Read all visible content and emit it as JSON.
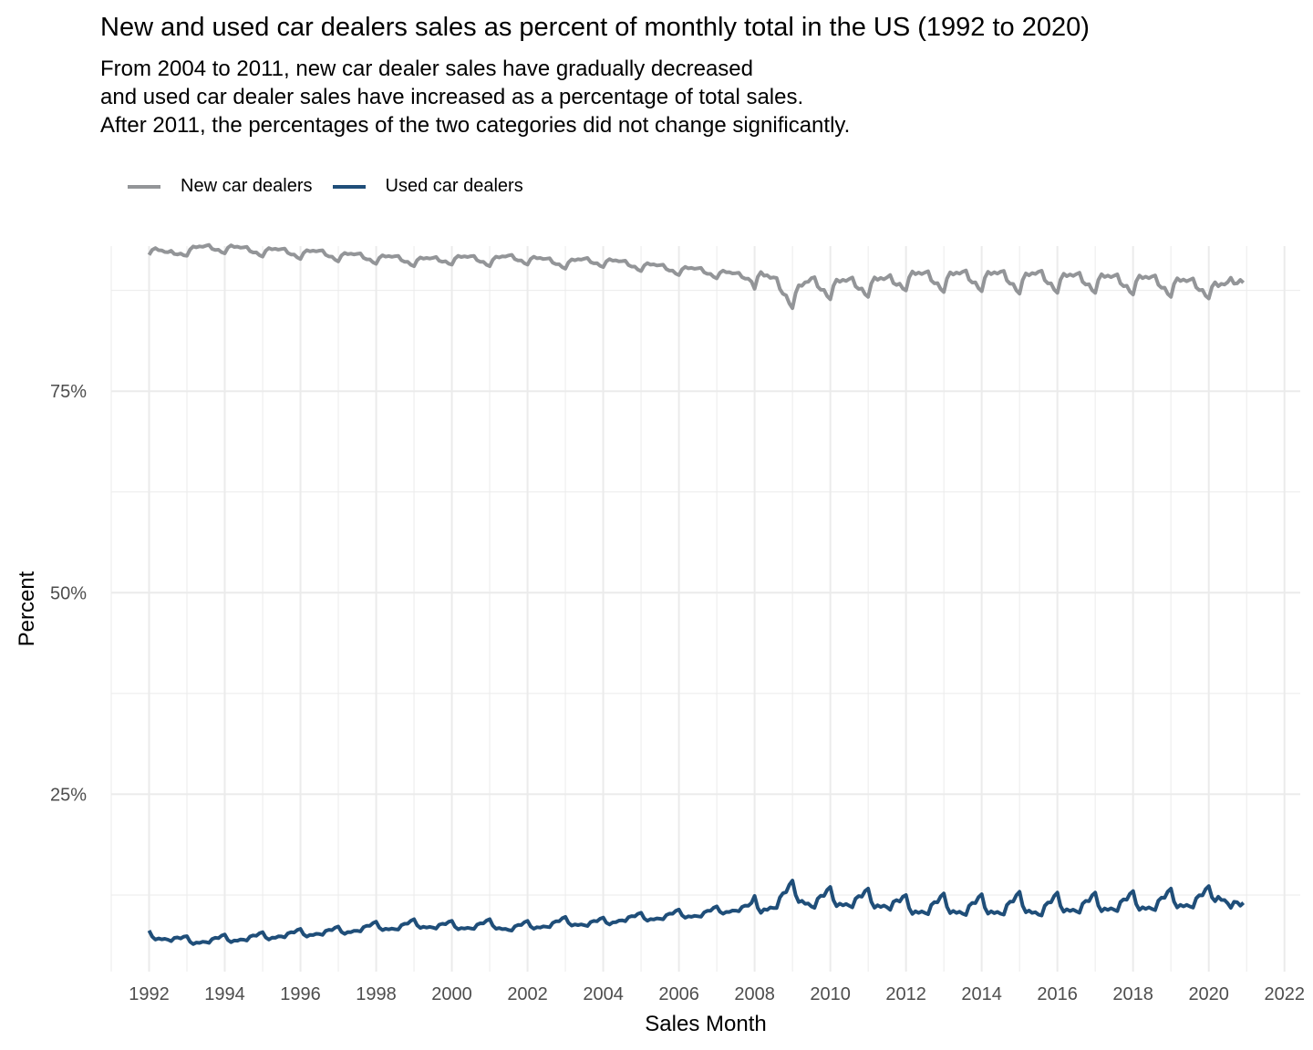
{
  "title": "New and used car dealers sales as percent of monthly total in the US (1992 to 2020)",
  "subtitle": [
    "From 2004 to 2011, new car dealer sales have gradually decreased",
    "and used car dealer sales have increased as a percentage of total sales.",
    "After 2011, the percentages of the two categories did not change significantly."
  ],
  "colors": {
    "new": "#939598",
    "used": "#1f4e79",
    "grid": "#ebebeb"
  },
  "chart_data": {
    "type": "line",
    "title": "New and used car dealers sales as percent of monthly total in the US (1992 to 2020)",
    "xlabel": "Sales Month",
    "ylabel": "Percent",
    "xlim": [
      "1991-01-01",
      "2022-06-01"
    ],
    "ylim": [
      3,
      93
    ],
    "x_ticks": [
      "1992",
      "1994",
      "1996",
      "1998",
      "2000",
      "2002",
      "2004",
      "2006",
      "2008",
      "2010",
      "2012",
      "2014",
      "2016",
      "2018",
      "2020",
      "2022"
    ],
    "y_ticks": [
      "25%",
      "50%",
      "75%"
    ],
    "y_tick_values": [
      25,
      50,
      75
    ],
    "legend_position": "top-left",
    "grid": true,
    "series": [
      {
        "name": "New car dealers",
        "color": "#939598",
        "x": [
          "1992-01-01",
          "1992-07-01",
          "1993-01-01",
          "1993-07-01",
          "1994-01-01",
          "1994-07-01",
          "1995-01-01",
          "1995-07-01",
          "1996-01-01",
          "1996-07-01",
          "1997-01-01",
          "1997-07-01",
          "1998-01-01",
          "1998-07-01",
          "1999-01-01",
          "1999-07-01",
          "2000-01-01",
          "2000-07-01",
          "2001-01-01",
          "2001-07-01",
          "2002-01-01",
          "2002-07-01",
          "2003-01-01",
          "2003-07-01",
          "2004-01-01",
          "2004-07-01",
          "2005-01-01",
          "2005-07-01",
          "2006-01-01",
          "2006-07-01",
          "2007-01-01",
          "2007-07-01",
          "2008-01-01",
          "2008-07-01",
          "2009-01-01",
          "2009-07-01",
          "2010-01-01",
          "2010-07-01",
          "2011-01-01",
          "2011-07-01",
          "2012-01-01",
          "2012-07-01",
          "2013-01-01",
          "2013-07-01",
          "2014-01-01",
          "2014-07-01",
          "2015-01-01",
          "2015-07-01",
          "2016-01-01",
          "2016-07-01",
          "2017-01-01",
          "2017-07-01",
          "2018-01-01",
          "2018-07-01",
          "2019-01-01",
          "2019-07-01",
          "2020-01-01",
          "2020-04-01",
          "2020-07-01",
          "2020-12-01"
        ],
        "values": [
          92.5,
          92.0,
          92.4,
          92.8,
          92.7,
          92.6,
          92.3,
          92.4,
          92.0,
          92.2,
          91.7,
          91.8,
          91.4,
          91.5,
          91.1,
          91.3,
          91.3,
          91.5,
          91.1,
          91.6,
          91.3,
          91.2,
          90.8,
          91.2,
          91.0,
          90.9,
          90.5,
          90.4,
          90.0,
          90.0,
          89.6,
          89.4,
          89.0,
          88.6,
          86.6,
          88.5,
          87.7,
          88.4,
          88.0,
          88.6,
          88.8,
          89.2,
          88.6,
          89.3,
          88.7,
          89.3,
          88.4,
          89.3,
          88.5,
          89.0,
          88.5,
          88.8,
          88.3,
          88.7,
          88.0,
          88.3,
          87.8,
          87.5,
          88.0,
          89.5
        ]
      },
      {
        "name": "Used car dealers",
        "color": "#1f4e79",
        "x": [
          "1992-01-01",
          "1992-07-01",
          "1993-01-01",
          "1993-07-01",
          "1994-01-01",
          "1994-07-01",
          "1995-01-01",
          "1995-07-01",
          "1996-01-01",
          "1996-07-01",
          "1997-01-01",
          "1997-07-01",
          "1998-01-01",
          "1998-07-01",
          "1999-01-01",
          "1999-07-01",
          "2000-01-01",
          "2000-07-01",
          "2001-01-01",
          "2001-07-01",
          "2002-01-01",
          "2002-07-01",
          "2003-01-01",
          "2003-07-01",
          "2004-01-01",
          "2004-07-01",
          "2005-01-01",
          "2005-07-01",
          "2006-01-01",
          "2006-07-01",
          "2007-01-01",
          "2007-07-01",
          "2008-01-01",
          "2008-07-01",
          "2009-01-01",
          "2009-07-01",
          "2010-01-01",
          "2010-07-01",
          "2011-01-01",
          "2011-07-01",
          "2012-01-01",
          "2012-07-01",
          "2013-01-01",
          "2013-07-01",
          "2014-01-01",
          "2014-07-01",
          "2015-01-01",
          "2015-07-01",
          "2016-01-01",
          "2016-07-01",
          "2017-01-01",
          "2017-07-01",
          "2018-01-01",
          "2018-07-01",
          "2019-01-01",
          "2019-07-01",
          "2020-01-01",
          "2020-04-01",
          "2020-07-01",
          "2020-12-01"
        ],
        "values": [
          7.5,
          7.2,
          6.8,
          6.9,
          7.0,
          7.2,
          7.3,
          7.6,
          7.7,
          7.9,
          8.0,
          8.3,
          8.6,
          8.5,
          8.9,
          8.7,
          8.7,
          8.6,
          8.9,
          8.4,
          8.7,
          8.8,
          9.2,
          9.0,
          9.1,
          9.6,
          9.7,
          9.8,
          10.1,
          10.1,
          10.5,
          10.8,
          11.1,
          11.4,
          13.0,
          11.6,
          12.2,
          11.7,
          12.0,
          11.5,
          11.2,
          10.8,
          11.4,
          10.7,
          11.3,
          10.7,
          11.6,
          10.6,
          11.5,
          11.0,
          11.5,
          11.2,
          11.7,
          11.3,
          12.0,
          11.6,
          12.3,
          12.8,
          12.0,
          10.5
        ]
      }
    ]
  }
}
